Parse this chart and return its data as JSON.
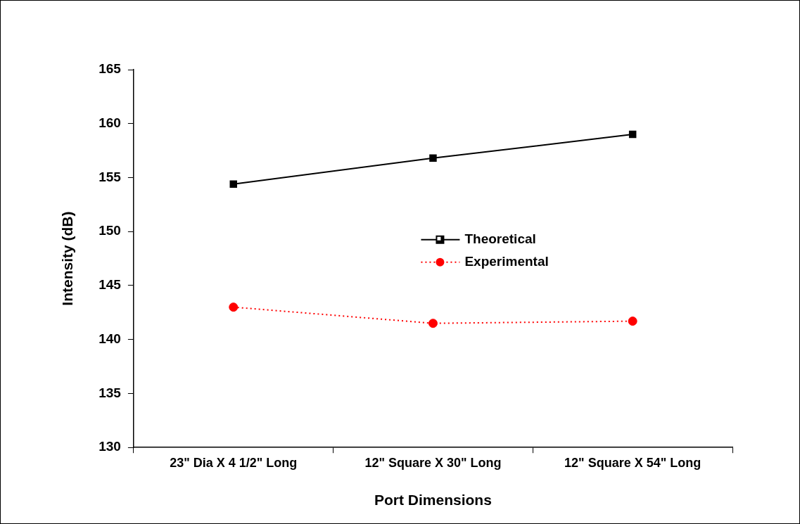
{
  "chart_data": {
    "type": "line",
    "xlabel": "Port Dimensions",
    "ylabel": "Intensity (dB)",
    "categories": [
      "23\" Dia X 4 1/2\" Long",
      "12\" Square X 30\" Long",
      "12\" Square X 54\" Long"
    ],
    "series": [
      {
        "name": "Theoretical",
        "color": "#000000",
        "values": [
          154.4,
          156.8,
          159.0
        ],
        "marker": "square",
        "line_style": "solid"
      },
      {
        "name": "Experimental",
        "color": "#ff0000",
        "values": [
          143.0,
          141.5,
          141.7
        ],
        "marker": "circle",
        "line_style": "dotted"
      }
    ],
    "ylim": [
      130,
      165
    ],
    "yticks": [
      130,
      135,
      140,
      145,
      150,
      155,
      160,
      165
    ],
    "grid": false,
    "legend": "center"
  }
}
